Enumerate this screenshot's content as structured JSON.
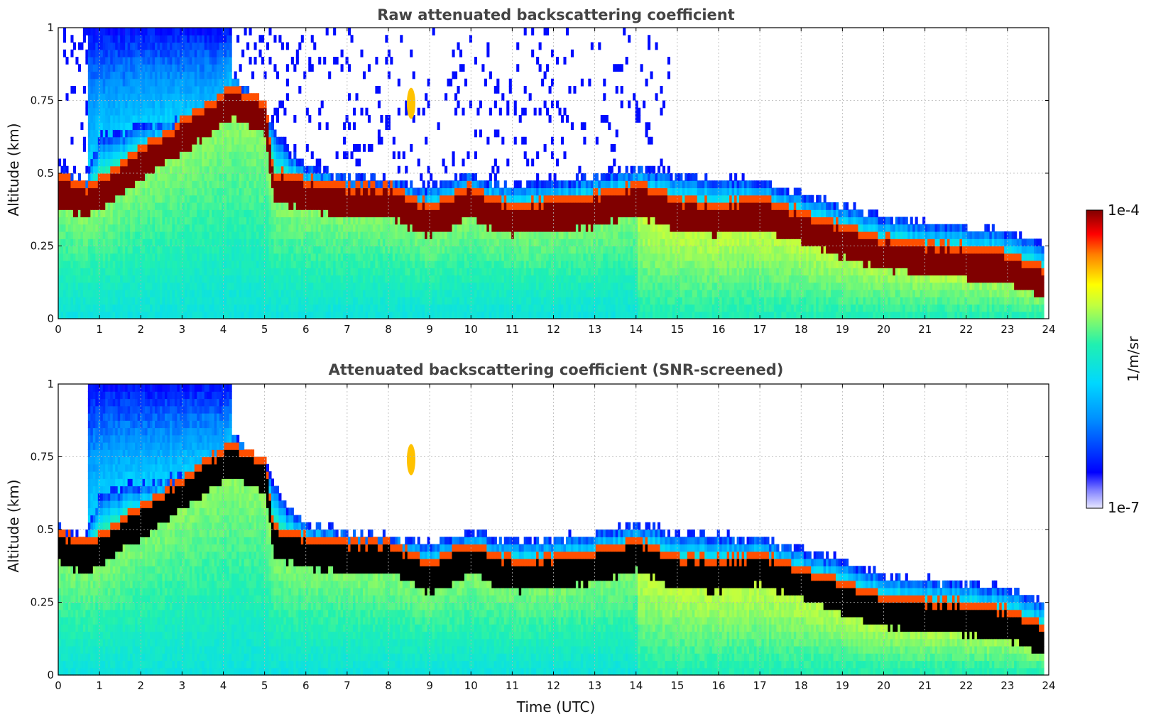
{
  "chart_data": [
    {
      "type": "heatmap",
      "title": "Raw attenuated backscattering coefficient",
      "xlabel": "",
      "ylabel": "Altitude (km)",
      "xlim": [
        0,
        24
      ],
      "ylim": [
        0,
        1
      ],
      "xticks": [
        "0",
        "1",
        "2",
        "3",
        "4",
        "5",
        "6",
        "7",
        "8",
        "9",
        "10",
        "11",
        "12",
        "13",
        "14",
        "15",
        "16",
        "17",
        "18",
        "19",
        "20",
        "21",
        "22",
        "23",
        "24"
      ],
      "yticks": [
        "0",
        "0.25",
        "0.5",
        "0.75",
        "1"
      ],
      "screened": false,
      "layer_top_km": [
        [
          0,
          0.52
        ],
        [
          0.6,
          0.47
        ],
        [
          0.7,
          0.5
        ],
        [
          1,
          0.63
        ],
        [
          2,
          0.66
        ],
        [
          3,
          0.69
        ],
        [
          4,
          0.71
        ],
        [
          4.2,
          0.84
        ],
        [
          5,
          0.72
        ],
        [
          5.5,
          0.58
        ],
        [
          6,
          0.52
        ],
        [
          7,
          0.49
        ],
        [
          8,
          0.48
        ],
        [
          9,
          0.45
        ],
        [
          10,
          0.5
        ],
        [
          10.5,
          0.47
        ],
        [
          11,
          0.46
        ],
        [
          12,
          0.47
        ],
        [
          13,
          0.49
        ],
        [
          14,
          0.52
        ],
        [
          15,
          0.49
        ],
        [
          16,
          0.48
        ],
        [
          17,
          0.47
        ],
        [
          18,
          0.43
        ],
        [
          19,
          0.39
        ],
        [
          20,
          0.35
        ],
        [
          21,
          0.33
        ],
        [
          22,
          0.32
        ],
        [
          23,
          0.3
        ],
        [
          23.8,
          0.26
        ]
      ],
      "cloud_band_km": [
        [
          0,
          0.44
        ],
        [
          0.6,
          0.4
        ],
        [
          0.7,
          0.4
        ],
        [
          4.2,
          0.74
        ],
        [
          5,
          0.68
        ],
        [
          5.2,
          0.45
        ],
        [
          6,
          0.42
        ],
        [
          7,
          0.4
        ],
        [
          8,
          0.4
        ],
        [
          9,
          0.33
        ],
        [
          10,
          0.4
        ],
        [
          10.5,
          0.36
        ],
        [
          11,
          0.34
        ],
        [
          12,
          0.35
        ],
        [
          13,
          0.37
        ],
        [
          14,
          0.41
        ],
        [
          15,
          0.35
        ],
        [
          16,
          0.34
        ],
        [
          17,
          0.36
        ],
        [
          18,
          0.31
        ],
        [
          19,
          0.26
        ],
        [
          20,
          0.22
        ],
        [
          21,
          0.2
        ],
        [
          22,
          0.19
        ],
        [
          23,
          0.17
        ],
        [
          23.8,
          0.12
        ]
      ],
      "series_note": "cloud base near 0.45 km at 0 UTC descending to 0.15 km at 23.8 UTC"
    },
    {
      "type": "heatmap",
      "title": "Attenuated backscattering coefficient (SNR-screened)",
      "xlabel": "Time (UTC)",
      "ylabel": "Altitude (km)",
      "xlim": [
        0,
        24
      ],
      "ylim": [
        0,
        1
      ],
      "xticks": [
        "0",
        "1",
        "2",
        "3",
        "4",
        "5",
        "6",
        "7",
        "8",
        "9",
        "10",
        "11",
        "12",
        "13",
        "14",
        "15",
        "16",
        "17",
        "18",
        "19",
        "20",
        "21",
        "22",
        "23",
        "24"
      ],
      "yticks": [
        "0",
        "0.25",
        "0.5",
        "0.75",
        "1"
      ],
      "screened": true
    }
  ],
  "colorbar": {
    "label": "1/m/sr",
    "max_label": "1e-4",
    "min_label": "1e-7",
    "colors": [
      "#e8e8ff",
      "#0000ff",
      "#00bfff",
      "#00ffc0",
      "#ffff00",
      "#ff8000",
      "#ff0000",
      "#800000"
    ]
  }
}
